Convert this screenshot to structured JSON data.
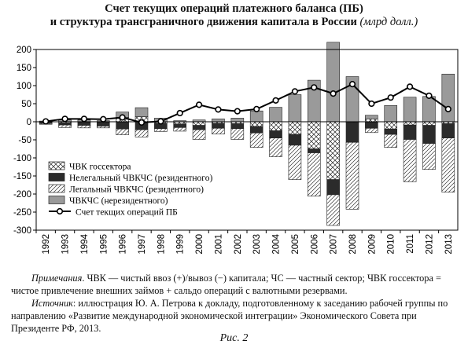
{
  "figure": {
    "title_line1": "Счет текущих операций платежного баланса (ПБ)",
    "title_line2": "и структура трансграничного движения капитала в России",
    "title_unit": "(млрд долл.)",
    "note_label": "Примечания",
    "note_text": ". ЧВК — чистый ввоз (+)/вывоз (−) капитала; ЧС — частный сектор; ЧВК госсектора = чистое привлечение внешних займов + сальдо операций с валютными резервами.",
    "source_label": "Источник",
    "source_text": ": иллюстрация Ю. А. Петрова к докладу, подготовленному к заседанию рабочей группы по направлению «Развитие международной экономической интеграции» Экономического Совета при Президенте РФ, 2013.",
    "caption": "Рис. 2"
  },
  "chart_data": {
    "type": "bar",
    "stacked": true,
    "categories": [
      "1992",
      "1993",
      "1994",
      "1995",
      "1996",
      "1997",
      "1998",
      "1999",
      "2000",
      "2001",
      "2002",
      "2003",
      "2004",
      "2005",
      "2006",
      "2007",
      "2008",
      "2009",
      "2010",
      "2011",
      "2012",
      "2013"
    ],
    "ylim": [
      -300,
      200
    ],
    "yticks": [
      -300,
      -250,
      -200,
      -150,
      -100,
      -50,
      0,
      50,
      100,
      150,
      200
    ],
    "grid": false,
    "legend_position": "lower-left",
    "series": [
      {
        "name": "ЧВК госсектора",
        "kind": "bar",
        "pattern": "crosshatch",
        "values": [
          -2,
          -3,
          -2,
          -2,
          12,
          14,
          -4,
          -6,
          -10,
          -4,
          -5,
          -13,
          -25,
          -35,
          -75,
          -160,
          -2,
          8,
          -20,
          -9,
          -10,
          -5
        ]
      },
      {
        "name": "Нелегальный ЧВКЧС (резидентного)",
        "kind": "bar",
        "pattern": "solid-dark",
        "values": [
          -3,
          -6,
          -8,
          -10,
          -20,
          -22,
          -15,
          -10,
          -12,
          -14,
          -14,
          -18,
          -20,
          -30,
          -11,
          -42,
          -55,
          -18,
          -15,
          -40,
          -50,
          -40
        ]
      },
      {
        "name": "Легальный ЧВКЧС (резидентного)",
        "kind": "bar",
        "pattern": "hatch",
        "values": [
          -2,
          -7,
          -7,
          -5,
          -16,
          -20,
          -8,
          -10,
          -27,
          -16,
          -30,
          -40,
          -52,
          -95,
          -120,
          -85,
          -185,
          -12,
          -36,
          -117,
          -72,
          -150
        ]
      },
      {
        "name": "ЧВКЧС (нерезидентного)",
        "kind": "bar",
        "pattern": "solid-gray",
        "values": [
          2,
          5,
          5,
          3,
          15,
          25,
          10,
          3,
          5,
          8,
          10,
          30,
          40,
          75,
          115,
          220,
          125,
          10,
          45,
          68,
          70,
          132
        ]
      },
      {
        "name": "Счет текщих операций ПБ",
        "kind": "line",
        "values": [
          1,
          8,
          8,
          7,
          12,
          -2,
          1,
          24,
          47,
          34,
          29,
          35,
          59,
          84,
          95,
          78,
          104,
          50,
          67,
          97,
          72,
          35
        ]
      }
    ]
  },
  "colors": {
    "bar_gray": "#9a9a9a",
    "bar_dark": "#2b2b2b",
    "axis": "#000000"
  }
}
